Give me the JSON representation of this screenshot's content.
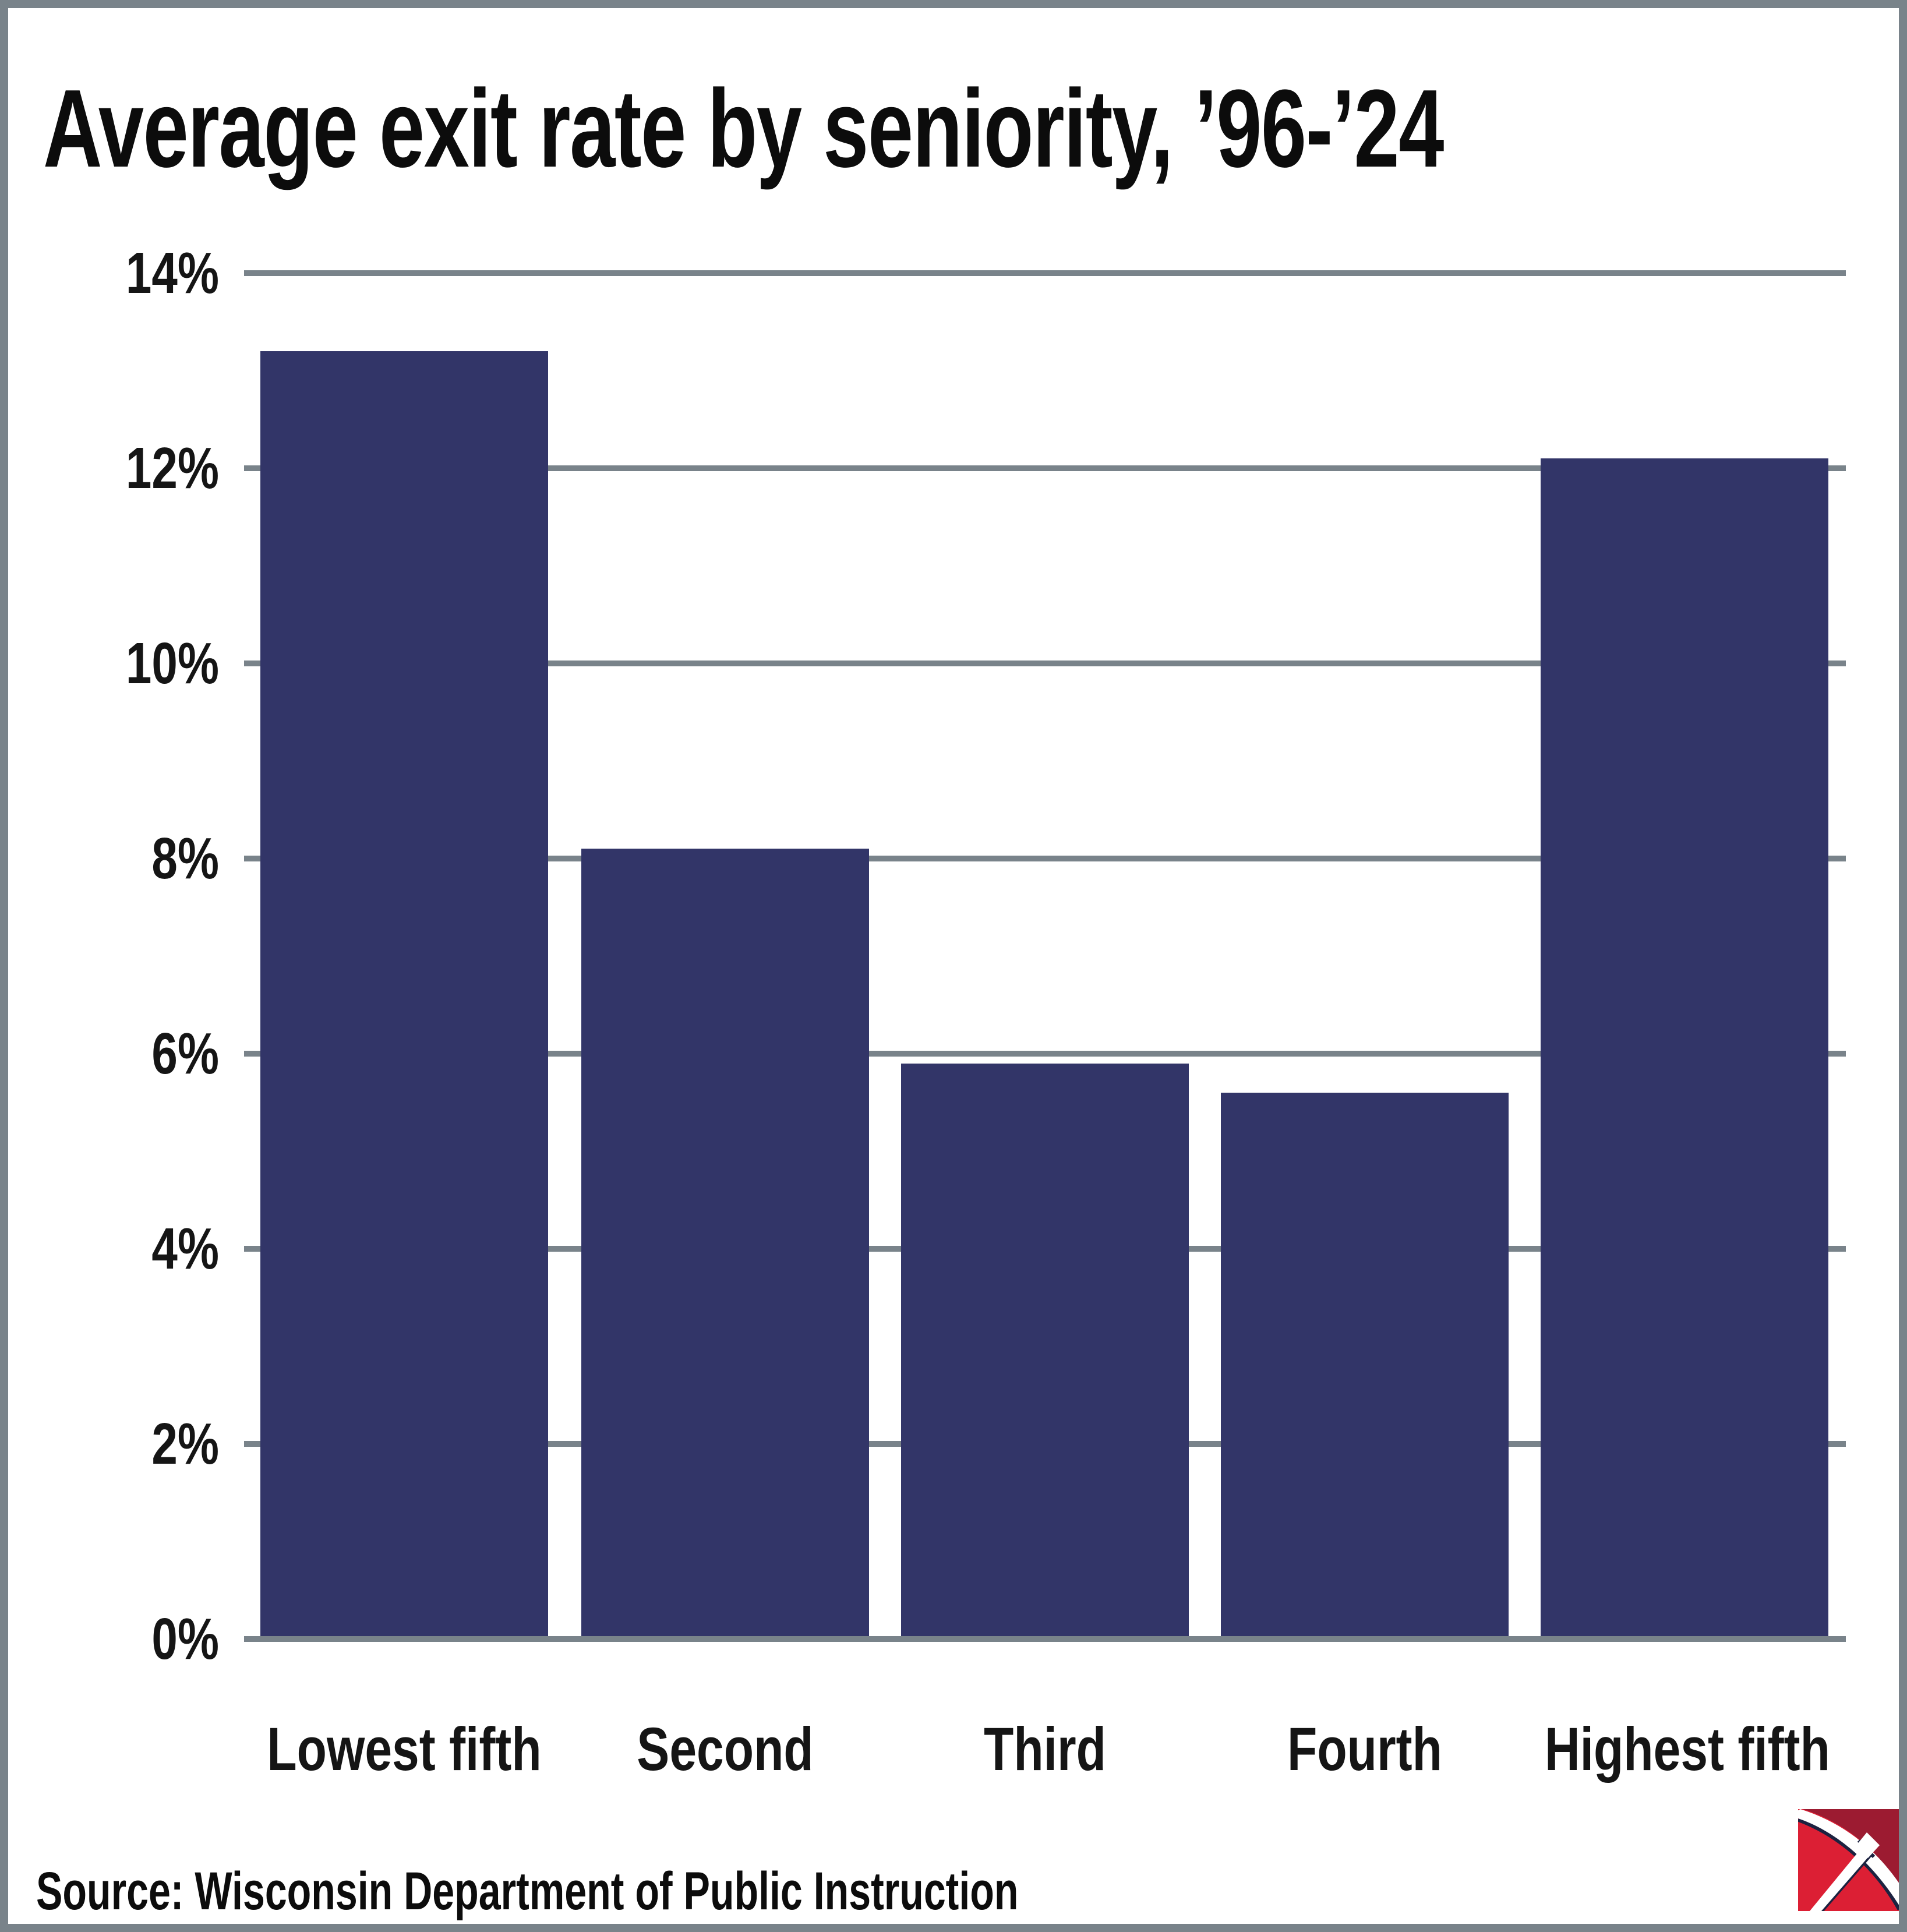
{
  "title": "Average exit rate by seniority, ’96-’24",
  "source": "Source: Wisconsin Department of Public Instruction",
  "colors": {
    "bar": "#323568",
    "grid": "#79838a",
    "text": "#0c0c0c",
    "logo_red": "#dc1f34",
    "logo_dark_red": "#9c1b31",
    "logo_navy": "#1c2240"
  },
  "logo": {
    "name": "pickaxe-logo"
  },
  "chart_data": {
    "type": "bar",
    "title": "Average exit rate by seniority, ’96-’24",
    "categories": [
      "Lowest fifth",
      "Second",
      "Third",
      "Fourth",
      "Highest fifth"
    ],
    "values": [
      13.2,
      8.1,
      5.9,
      5.6,
      12.1
    ],
    "unit": "%",
    "xlabel": "",
    "ylabel": "",
    "ylim": [
      0,
      14
    ],
    "y_ticks": [
      0,
      2,
      4,
      6,
      8,
      10,
      12,
      14
    ],
    "y_tick_labels": [
      "0%",
      "2%",
      "4%",
      "6%",
      "8%",
      "10%",
      "12%",
      "14%"
    ],
    "grid": "horizontal gridlines on",
    "legend": "none",
    "source": "Source: Wisconsin Department of Public Instruction"
  }
}
